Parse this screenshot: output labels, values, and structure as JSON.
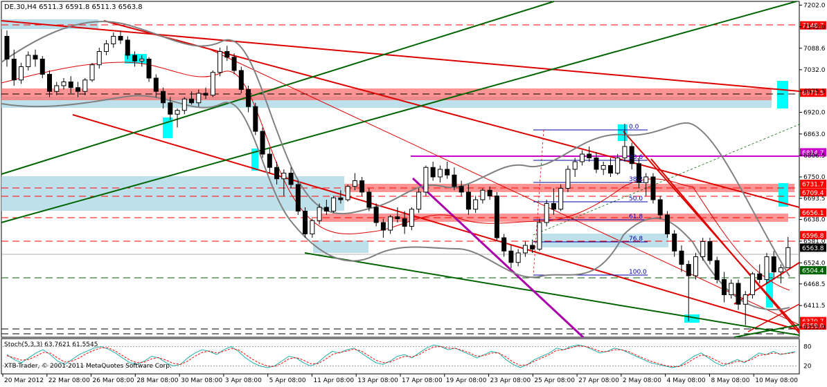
{
  "header": {
    "symbol_info": "DE.30,H4  6511.3 6591.8 6511.3 6563.8"
  },
  "footer": {
    "copyright": "XTB-Trader, © 2001-2011 MetaQuotes Software Corp."
  },
  "chart_data": [
    {
      "type": "candlestick",
      "symbol": "DE.30",
      "timeframe": "H4",
      "ohlc_readout": {
        "open": 6511.3,
        "high": 6591.8,
        "low": 6511.3,
        "close": 6563.8
      },
      "ylim": [
        6330,
        7210
      ],
      "y_ticks": [
        7202.0,
        7145.0,
        7088.6,
        7032.0,
        6975.5,
        6920.0,
        6863.0,
        6806.5,
        6750.0,
        6693.5,
        6638.0,
        6581.0,
        6524.0,
        6468.5,
        6411.5,
        6355.0
      ],
      "x_tick_labels": [
        "20 Mar 2012",
        "22 Mar 08:00",
        "26 Mar 08:00",
        "28 Mar 08:00",
        "30 Mar 08:00",
        "3 Apr 08:00",
        "5 Apr 08:00",
        "11 Apr 08:00",
        "13 Apr 08:00",
        "17 Apr 08:00",
        "19 Apr 08:00",
        "23 Apr 08:00",
        "25 Apr 08:00",
        "27 Apr 08:00",
        "2 May 08:00",
        "4 May 08:00",
        "8 May 08:00",
        "10 May 08:00"
      ],
      "price_levels": [
        {
          "label": "7148.7",
          "color": "#ff0000"
        },
        {
          "label": "6971.5",
          "color": "#ff0000"
        },
        {
          "label": "6814.7",
          "color": "#cc00cc"
        },
        {
          "label": "6731.7",
          "color": "#ff0000"
        },
        {
          "label": "6709.4",
          "color": "#ff0000"
        },
        {
          "label": "6656.1",
          "color": "#ff0000"
        },
        {
          "label": "6596.8",
          "color": "#ff0000"
        },
        {
          "label": "6563.8",
          "color": "#000000"
        },
        {
          "label": "6504.4",
          "color": "#006400"
        },
        {
          "label": "6370.7",
          "color": "#ff0000"
        },
        {
          "label": "6359.0",
          "color": "#ff0000"
        }
      ],
      "fibonacci": [
        "0.0",
        "23.6",
        "38.2",
        "50.0",
        "61.8",
        "76.8",
        "100.0"
      ],
      "candles": [
        [
          7120,
          7135,
          7040,
          7060
        ],
        [
          7060,
          7085,
          6990,
          7005
        ],
        [
          7005,
          7050,
          6995,
          7040
        ],
        [
          7040,
          7080,
          7030,
          7070
        ],
        [
          7070,
          7085,
          7040,
          7060
        ],
        [
          7060,
          7068,
          7010,
          7020
        ],
        [
          7020,
          7030,
          6960,
          6975
        ],
        [
          6975,
          7000,
          6965,
          6990
        ],
        [
          6990,
          7010,
          6980,
          7000
        ],
        [
          7000,
          7015,
          6970,
          6985
        ],
        [
          6985,
          7000,
          6960,
          6975
        ],
        [
          6975,
          7010,
          6965,
          7005
        ],
        [
          7005,
          7050,
          7000,
          7045
        ],
        [
          7045,
          7090,
          7035,
          7080
        ],
        [
          7080,
          7110,
          7070,
          7100
        ],
        [
          7100,
          7130,
          7090,
          7120
        ],
        [
          7120,
          7135,
          7100,
          7110
        ],
        [
          7110,
          7120,
          7060,
          7070
        ],
        [
          7070,
          7080,
          7040,
          7055
        ],
        [
          7055,
          7070,
          7040,
          7060
        ],
        [
          7060,
          7065,
          7000,
          7010
        ],
        [
          7010,
          7020,
          6960,
          6975
        ],
        [
          6975,
          6985,
          6930,
          6945
        ],
        [
          6945,
          6960,
          6900,
          6915
        ],
        [
          6915,
          6930,
          6880,
          6925
        ],
        [
          6925,
          6960,
          6915,
          6955
        ],
        [
          6955,
          6975,
          6940,
          6945
        ],
        [
          6945,
          6980,
          6935,
          6970
        ],
        [
          6970,
          6985,
          6955,
          6965
        ],
        [
          6965,
          7030,
          6960,
          7025
        ],
        [
          7025,
          7090,
          7015,
          7080
        ],
        [
          7080,
          7095,
          7055,
          7065
        ],
        [
          7065,
          7075,
          7020,
          7030
        ],
        [
          7030,
          7040,
          6970,
          6980
        ],
        [
          6980,
          6990,
          6920,
          6935
        ],
        [
          6935,
          6945,
          6860,
          6870
        ],
        [
          6870,
          6880,
          6800,
          6810
        ],
        [
          6810,
          6825,
          6760,
          6775
        ],
        [
          6775,
          6790,
          6730,
          6745
        ],
        [
          6745,
          6770,
          6700,
          6760
        ],
        [
          6760,
          6775,
          6720,
          6730
        ],
        [
          6730,
          6740,
          6650,
          6660
        ],
        [
          6660,
          6670,
          6590,
          6600
        ],
        [
          6600,
          6640,
          6590,
          6635
        ],
        [
          6635,
          6680,
          6625,
          6670
        ],
        [
          6670,
          6690,
          6650,
          6660
        ],
        [
          6660,
          6700,
          6655,
          6695
        ],
        [
          6695,
          6715,
          6680,
          6690
        ],
        [
          6690,
          6730,
          6685,
          6725
        ],
        [
          6725,
          6760,
          6715,
          6740
        ],
        [
          6740,
          6750,
          6700,
          6710
        ],
        [
          6710,
          6720,
          6660,
          6670
        ],
        [
          6670,
          6680,
          6620,
          6630
        ],
        [
          6630,
          6640,
          6590,
          6610
        ],
        [
          6610,
          6650,
          6600,
          6645
        ],
        [
          6645,
          6670,
          6630,
          6640
        ],
        [
          6640,
          6660,
          6600,
          6620
        ],
        [
          6620,
          6670,
          6610,
          6665
        ],
        [
          6665,
          6720,
          6655,
          6710
        ],
        [
          6710,
          6780,
          6700,
          6775
        ],
        [
          6775,
          6790,
          6740,
          6750
        ],
        [
          6750,
          6780,
          6735,
          6770
        ],
        [
          6770,
          6790,
          6745,
          6755
        ],
        [
          6755,
          6775,
          6715,
          6725
        ],
        [
          6725,
          6740,
          6700,
          6710
        ],
        [
          6710,
          6730,
          6650,
          6665
        ],
        [
          6665,
          6700,
          6655,
          6690
        ],
        [
          6690,
          6720,
          6680,
          6715
        ],
        [
          6715,
          6725,
          6690,
          6700
        ],
        [
          6700,
          6710,
          6580,
          6590
        ],
        [
          6590,
          6600,
          6540,
          6555
        ],
        [
          6555,
          6570,
          6510,
          6525
        ],
        [
          6525,
          6560,
          6515,
          6550
        ],
        [
          6550,
          6580,
          6540,
          6570
        ],
        [
          6570,
          6585,
          6550,
          6560
        ],
        [
          6560,
          6640,
          6555,
          6630
        ],
        [
          6630,
          6690,
          6620,
          6680
        ],
        [
          6680,
          6720,
          6650,
          6665
        ],
        [
          6665,
          6730,
          6660,
          6720
        ],
        [
          6720,
          6780,
          6710,
          6770
        ],
        [
          6770,
          6800,
          6750,
          6790
        ],
        [
          6790,
          6820,
          6780,
          6810
        ],
        [
          6810,
          6830,
          6790,
          6800
        ],
        [
          6800,
          6815,
          6760,
          6770
        ],
        [
          6770,
          6790,
          6755,
          6780
        ],
        [
          6780,
          6800,
          6750,
          6760
        ],
        [
          6760,
          6810,
          6755,
          6800
        ],
        [
          6800,
          6890,
          6790,
          6830
        ],
        [
          6830,
          6840,
          6770,
          6785
        ],
        [
          6785,
          6800,
          6720,
          6735
        ],
        [
          6735,
          6760,
          6700,
          6750
        ],
        [
          6750,
          6760,
          6680,
          6690
        ],
        [
          6690,
          6700,
          6640,
          6650
        ],
        [
          6650,
          6660,
          6590,
          6600
        ],
        [
          6600,
          6610,
          6540,
          6555
        ],
        [
          6555,
          6570,
          6500,
          6520
        ],
        [
          6520,
          6530,
          6370,
          6490
        ],
        [
          6490,
          6550,
          6480,
          6540
        ],
        [
          6540,
          6590,
          6530,
          6580
        ],
        [
          6580,
          6590,
          6520,
          6530
        ],
        [
          6530,
          6540,
          6470,
          6480
        ],
        [
          6480,
          6500,
          6420,
          6440
        ],
        [
          6440,
          6480,
          6430,
          6470
        ],
        [
          6470,
          6480,
          6400,
          6415
        ],
        [
          6415,
          6450,
          6360,
          6440
        ],
        [
          6440,
          6500,
          6430,
          6495
        ],
        [
          6495,
          6520,
          6470,
          6480
        ],
        [
          6480,
          6550,
          6470,
          6540
        ],
        [
          6540,
          6555,
          6480,
          6500
        ],
        [
          6500,
          6520,
          6470,
          6511
        ],
        [
          6511,
          6592,
          6511,
          6564
        ]
      ]
    },
    {
      "type": "line",
      "title": "Stoch(5,3,3) 63.7621 61.5545",
      "ylim": [
        0,
        100
      ],
      "y_ticks": [
        80,
        20
      ],
      "series": [
        {
          "values": [
            55,
            40,
            30,
            45,
            60,
            70,
            55,
            35,
            25,
            40,
            55,
            65,
            75,
            80,
            72,
            60,
            45,
            30,
            25,
            35,
            50,
            45,
            30,
            20,
            25,
            45,
            60,
            70,
            65,
            55,
            70,
            80,
            65,
            45,
            30,
            20,
            15,
            20,
            35,
            50,
            45,
            30,
            20,
            30,
            50,
            65,
            60,
            70,
            75,
            60,
            45,
            30,
            25,
            35,
            50,
            55,
            45,
            60,
            75,
            85,
            80,
            70,
            75,
            65,
            55,
            45,
            55,
            65,
            60,
            40,
            25,
            15,
            25,
            40,
            50,
            60,
            75,
            70,
            80,
            85,
            80,
            70,
            60,
            65,
            75,
            70,
            60,
            50,
            40,
            30,
            25,
            20,
            15,
            20,
            35,
            50,
            60,
            45,
            30,
            20,
            30,
            40,
            30,
            45,
            60,
            55,
            65,
            55,
            60,
            64
          ]
        },
        {
          "values": [
            52,
            45,
            38,
            40,
            50,
            62,
            60,
            45,
            32,
            35,
            45,
            58,
            68,
            76,
            76,
            66,
            52,
            38,
            30,
            32,
            42,
            46,
            38,
            28,
            25,
            35,
            50,
            62,
            66,
            60,
            65,
            74,
            70,
            55,
            40,
            28,
            20,
            18,
            28,
            42,
            46,
            38,
            27,
            27,
            40,
            55,
            62,
            66,
            72,
            66,
            52,
            38,
            30,
            32,
            42,
            50,
            48,
            55,
            68,
            78,
            80,
            75,
            74,
            68,
            60,
            50,
            52,
            60,
            60,
            48,
            32,
            22,
            24,
            35,
            45,
            55,
            68,
            70,
            76,
            82,
            80,
            74,
            65,
            64,
            70,
            70,
            64,
            54,
            44,
            35,
            28,
            22,
            18,
            18,
            28,
            42,
            54,
            50,
            38,
            27,
            27,
            35,
            33,
            40,
            53,
            55,
            60,
            57,
            58,
            62
          ]
        }
      ]
    }
  ]
}
